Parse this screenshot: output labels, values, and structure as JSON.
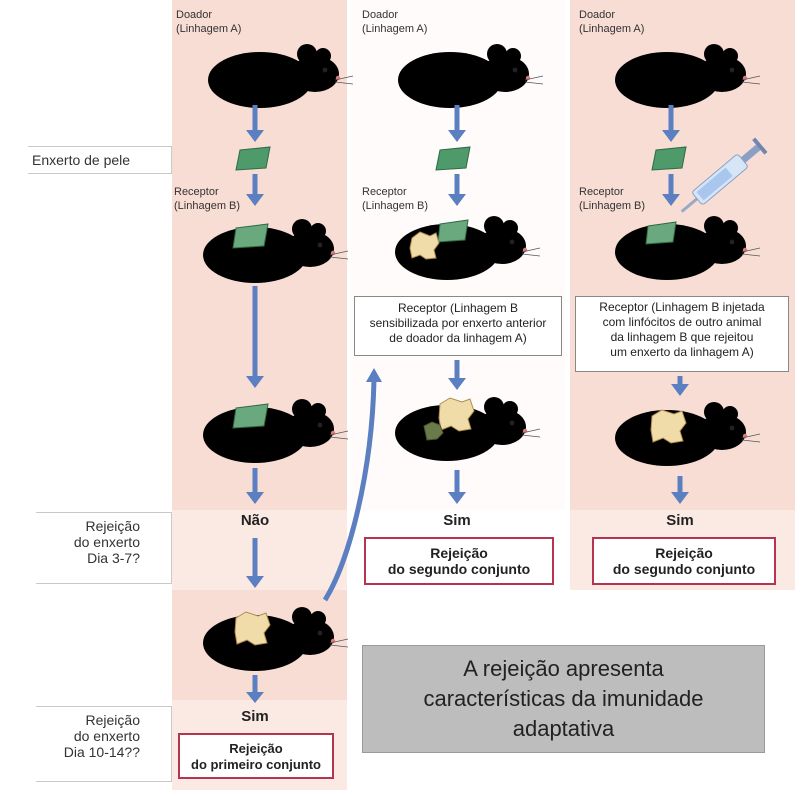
{
  "columns": [
    {
      "donor_label": "Doador\n(Linhagem A)",
      "recipient_label": "Receptor\n(Linhagem B)"
    },
    {
      "donor_label": "Doador\n(Linhagem A)",
      "recipient_label": "Receptor\n(Linhagem B)",
      "note": "Receptor (Linhagem B\nsensibilizada por enxerto anterior\nde doador da linhagem A)",
      "result": "Sim",
      "box": "Rejeição\ndo segundo conjunto"
    },
    {
      "donor_label": "Doador\n(Linhagem A)",
      "recipient_label": "Receptor\n(Linhagem B)",
      "note": "Receptor (Linhagem B injetada\ncom linfócitos de outro animal\nda linhagem B que rejeitou\num enxerto da linhagem A)",
      "result": "Sim",
      "box": "Rejeição\ndo segundo conjunto"
    }
  ],
  "first_column": {
    "result_early": "Não",
    "result_late": "Sim",
    "box": "Rejeição\ndo primeiro conjunto"
  },
  "side_labels": {
    "skin_graft": "Enxerto de pele",
    "rejection_early": "Rejeição\ndo enxerto\nDia 3-7?",
    "rejection_late": "Rejeição\ndo enxerto\nDia 10-14??"
  },
  "caption": "A rejeição apresenta\ncaracterísticas da imunidade\nadaptativa",
  "colors": {
    "panel": "#f8ddd5",
    "donor_mouse": "#6fba8f",
    "recipient_mouse": "#f0a070",
    "arrow": "#5b7fc0",
    "graft": "#4f9a6a",
    "box_border": "#b5344f",
    "caption_bg": "#bdbdbd"
  }
}
